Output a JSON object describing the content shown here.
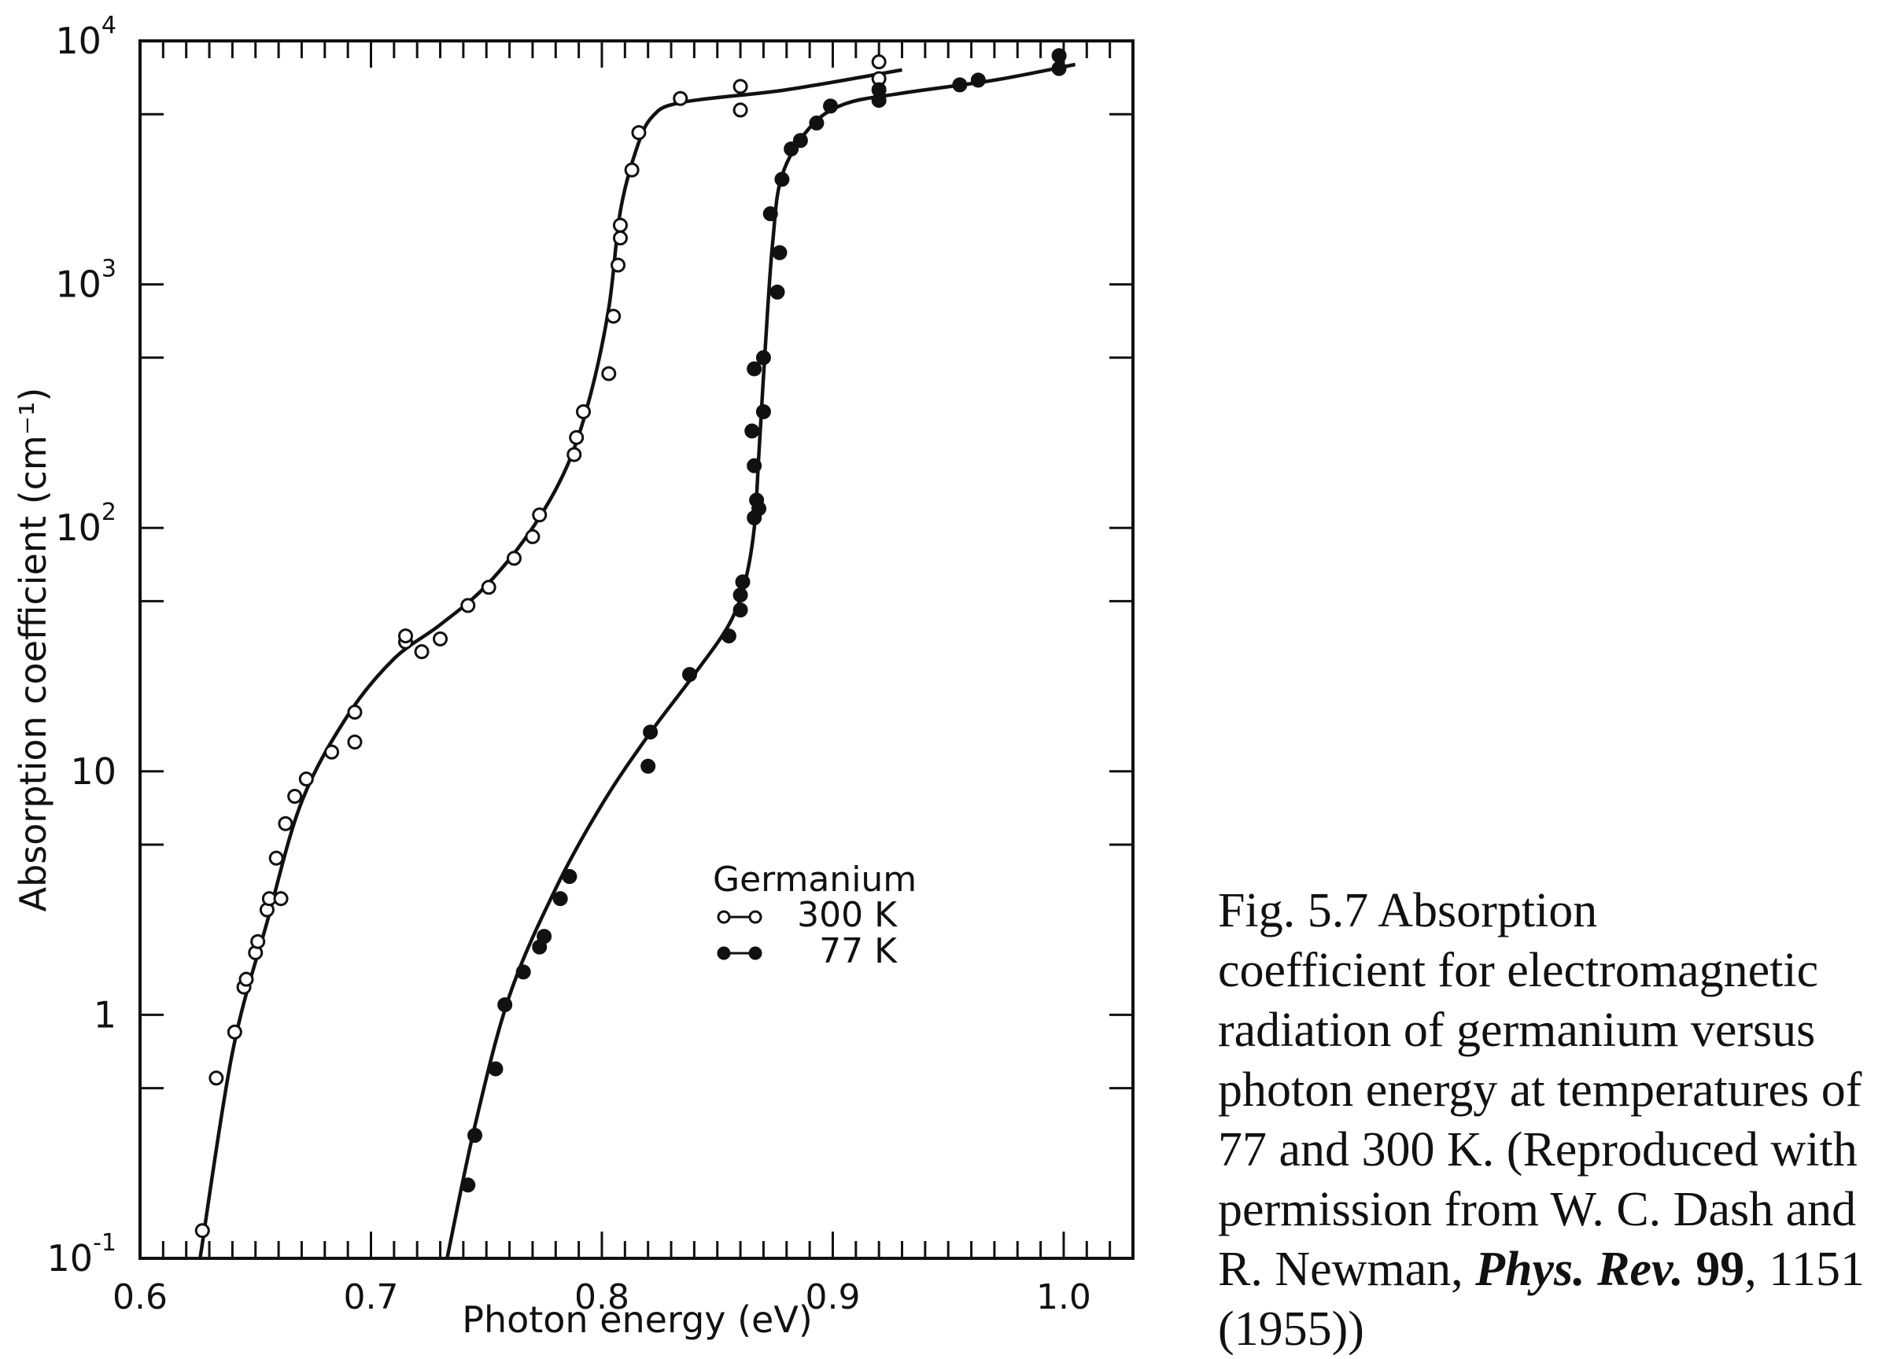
{
  "chart_data": {
    "type": "scatter",
    "xlabel": "Photon energy (eV)",
    "ylabel": "Absorption coefficient (cm⁻¹)",
    "xlim": [
      0.6,
      1.03
    ],
    "ylim": [
      0.1,
      10000
    ],
    "yscale": "log",
    "x_ticks": [
      "0.6",
      "0.7",
      "0.8",
      "0.9",
      "1.0"
    ],
    "y_ticks": [
      {
        "base": "10",
        "exp": "-1"
      },
      {
        "base": "1",
        "exp": ""
      },
      {
        "base": "10",
        "exp": ""
      },
      {
        "base": "10",
        "exp": "2"
      },
      {
        "base": "10",
        "exp": "3"
      },
      {
        "base": "10",
        "exp": "4"
      }
    ],
    "grid": false,
    "legend_title": "Germanium",
    "legend_position": "center",
    "series": [
      {
        "name": "300 K",
        "marker": "open-circle",
        "points": [
          [
            0.627,
            0.13
          ],
          [
            0.633,
            0.55
          ],
          [
            0.641,
            0.85
          ],
          [
            0.645,
            1.3
          ],
          [
            0.646,
            1.4
          ],
          [
            0.65,
            1.8
          ],
          [
            0.651,
            2.0
          ],
          [
            0.655,
            2.7
          ],
          [
            0.656,
            3.0
          ],
          [
            0.661,
            3.0
          ],
          [
            0.659,
            4.4
          ],
          [
            0.663,
            6.1
          ],
          [
            0.667,
            7.9
          ],
          [
            0.672,
            9.3
          ],
          [
            0.683,
            12.0
          ],
          [
            0.693,
            13.2
          ],
          [
            0.693,
            17.5
          ],
          [
            0.715,
            34.0
          ],
          [
            0.715,
            36.0
          ],
          [
            0.722,
            31.0
          ],
          [
            0.73,
            35.0
          ],
          [
            0.742,
            48.0
          ],
          [
            0.751,
            57.0
          ],
          [
            0.762,
            75.0
          ],
          [
            0.77,
            92.0
          ],
          [
            0.773,
            113.0
          ],
          [
            0.788,
            200.0
          ],
          [
            0.789,
            235.0
          ],
          [
            0.792,
            300.0
          ],
          [
            0.803,
            430.0
          ],
          [
            0.805,
            740.0
          ],
          [
            0.807,
            1200.0
          ],
          [
            0.808,
            1550.0
          ],
          [
            0.808,
            1750.0
          ],
          [
            0.813,
            2950.0
          ],
          [
            0.816,
            4200.0
          ],
          [
            0.834,
            5800.0
          ],
          [
            0.86,
            6500.0
          ],
          [
            0.86,
            5200.0
          ],
          [
            0.92,
            7000.0
          ],
          [
            0.92,
            8200.0
          ]
        ],
        "curve": [
          [
            0.626,
            0.1
          ],
          [
            0.64,
            0.7
          ],
          [
            0.655,
            2.4
          ],
          [
            0.67,
            7.5
          ],
          [
            0.69,
            17.0
          ],
          [
            0.71,
            29.0
          ],
          [
            0.73,
            40.0
          ],
          [
            0.75,
            58.0
          ],
          [
            0.77,
            100.0
          ],
          [
            0.785,
            180.0
          ],
          [
            0.795,
            350.0
          ],
          [
            0.803,
            800.0
          ],
          [
            0.808,
            2000.0
          ],
          [
            0.815,
            3600.0
          ],
          [
            0.822,
            4900.0
          ],
          [
            0.835,
            5600.0
          ],
          [
            0.88,
            6300.0
          ],
          [
            0.93,
            7600.0
          ]
        ]
      },
      {
        "name": "77 K",
        "marker": "filled-circle",
        "points": [
          [
            0.742,
            0.2
          ],
          [
            0.745,
            0.32
          ],
          [
            0.754,
            0.6
          ],
          [
            0.758,
            1.1
          ],
          [
            0.766,
            1.5
          ],
          [
            0.773,
            1.9
          ],
          [
            0.775,
            2.1
          ],
          [
            0.782,
            3.0
          ],
          [
            0.786,
            3.7
          ],
          [
            0.82,
            10.5
          ],
          [
            0.821,
            14.5
          ],
          [
            0.838,
            25.0
          ],
          [
            0.855,
            36.0
          ],
          [
            0.86,
            46.0
          ],
          [
            0.86,
            53.0
          ],
          [
            0.861,
            60.0
          ],
          [
            0.866,
            110.0
          ],
          [
            0.867,
            130.0
          ],
          [
            0.868,
            120.0
          ],
          [
            0.866,
            180.0
          ],
          [
            0.865,
            250.0
          ],
          [
            0.87,
            300.0
          ],
          [
            0.866,
            450.0
          ],
          [
            0.87,
            500.0
          ],
          [
            0.876,
            930.0
          ],
          [
            0.877,
            1350.0
          ],
          [
            0.873,
            1950.0
          ],
          [
            0.878,
            2700.0
          ],
          [
            0.882,
            3600.0
          ],
          [
            0.886,
            3900.0
          ],
          [
            0.893,
            4600.0
          ],
          [
            0.899,
            5400.0
          ],
          [
            0.92,
            5700.0
          ],
          [
            0.92,
            6300.0
          ],
          [
            0.955,
            6600.0
          ],
          [
            0.963,
            6900.0
          ],
          [
            0.998,
            7700.0
          ],
          [
            0.998,
            8700.0
          ]
        ],
        "curve": [
          [
            0.733,
            0.1
          ],
          [
            0.745,
            0.35
          ],
          [
            0.76,
            1.2
          ],
          [
            0.78,
            3.3
          ],
          [
            0.8,
            7.3
          ],
          [
            0.82,
            14.0
          ],
          [
            0.84,
            25.0
          ],
          [
            0.855,
            40.0
          ],
          [
            0.862,
            60.0
          ],
          [
            0.866,
            100.0
          ],
          [
            0.868,
            200.0
          ],
          [
            0.871,
            600.0
          ],
          [
            0.874,
            1500.0
          ],
          [
            0.878,
            2800.0
          ],
          [
            0.89,
            4400.0
          ],
          [
            0.905,
            5500.0
          ],
          [
            0.93,
            6100.0
          ],
          [
            0.97,
            6900.0
          ],
          [
            1.005,
            8000.0
          ]
        ]
      }
    ]
  },
  "caption": {
    "lead": "Fig. 5.7   Absorption",
    "body_1": "coefficient for electromagnetic radiation of germanium versus photon energy at temperatures of 77 and 300 K. (Reproduced with permission from W. C. Dash and R. Newman, ",
    "journal": "Phys. Rev.",
    "volume": "99",
    "body_2": ", 1151 (1955))"
  }
}
